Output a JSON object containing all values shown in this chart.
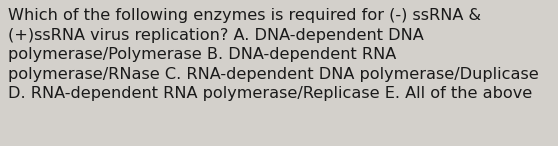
{
  "text": "Which of the following enzymes is required for (-) ssRNA &\n(+)ssRNA virus replication? A. DNA-dependent DNA\npolymerase/Polymerase B. DNA-dependent RNA\npolymerase/RNase C. RNA-dependent DNA polymerase/Duplicase\nD. RNA-dependent RNA polymerase/Replicase E. All of the above",
  "background_color": "#d3d0cb",
  "text_color": "#1a1a1a",
  "font_size": 11.6,
  "fig_width": 5.58,
  "fig_height": 1.46,
  "dpi": 100
}
